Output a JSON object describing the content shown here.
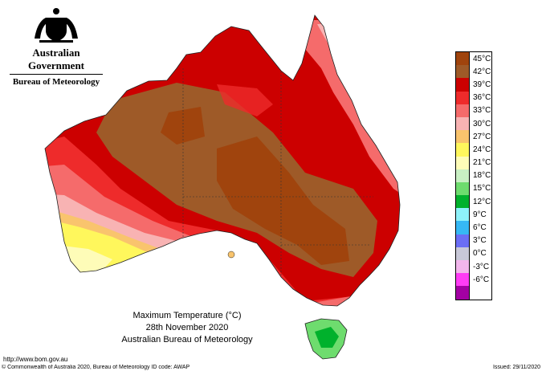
{
  "logo": {
    "government": "Australian Government",
    "bureau": "Bureau of Meteorology"
  },
  "caption": {
    "line1": "Maximum Temperature (°C)",
    "line2": "28th November 2020",
    "line3": "Australian Bureau of Meteorology"
  },
  "footer": {
    "url": "http://www.bom.gov.au",
    "copyright": "© Commonwealth of Australia 2020, Bureau of Meteorology      ID code: AWAP",
    "issued": "Issued: 29/11/2020"
  },
  "legend": [
    {
      "label": "45°C",
      "color": "#a0440d"
    },
    {
      "label": "42°C",
      "color": "#9e5a28"
    },
    {
      "label": "39°C",
      "color": "#cc0000"
    },
    {
      "label": "36°C",
      "color": "#ee2b2b"
    },
    {
      "label": "33°C",
      "color": "#f56b6b"
    },
    {
      "label": "30°C",
      "color": "#f8b3b3"
    },
    {
      "label": "27°C",
      "color": "#f9c46d"
    },
    {
      "label": "24°C",
      "color": "#fff75c"
    },
    {
      "label": "21°C",
      "color": "#fefcb8"
    },
    {
      "label": "18°C",
      "color": "#c9f0c4"
    },
    {
      "label": "15°C",
      "color": "#6edc6e"
    },
    {
      "label": "12°C",
      "color": "#00b12c"
    },
    {
      "label": "9°C",
      "color": "#8ef2fa"
    },
    {
      "label": "6°C",
      "color": "#36b8f4"
    },
    {
      "label": "3°C",
      "color": "#6b6ef5"
    },
    {
      "label": "0°C",
      "color": "#c8c8d8"
    },
    {
      "label": "-3°C",
      "color": "#f2b6ec"
    },
    {
      "label": "-6°C",
      "color": "#ff3cf5"
    },
    {
      "label": "",
      "color": "#a300a3"
    }
  ],
  "map_regions": {
    "coast_colors": {
      "north": "#cc0000",
      "west_coast": "#ee2b2b",
      "southwest": "#fff75c",
      "south": "#f8b3b3",
      "east": "#f56b6b",
      "tasmania": "#6edc6e"
    },
    "interior_color": "#9e5a28"
  }
}
